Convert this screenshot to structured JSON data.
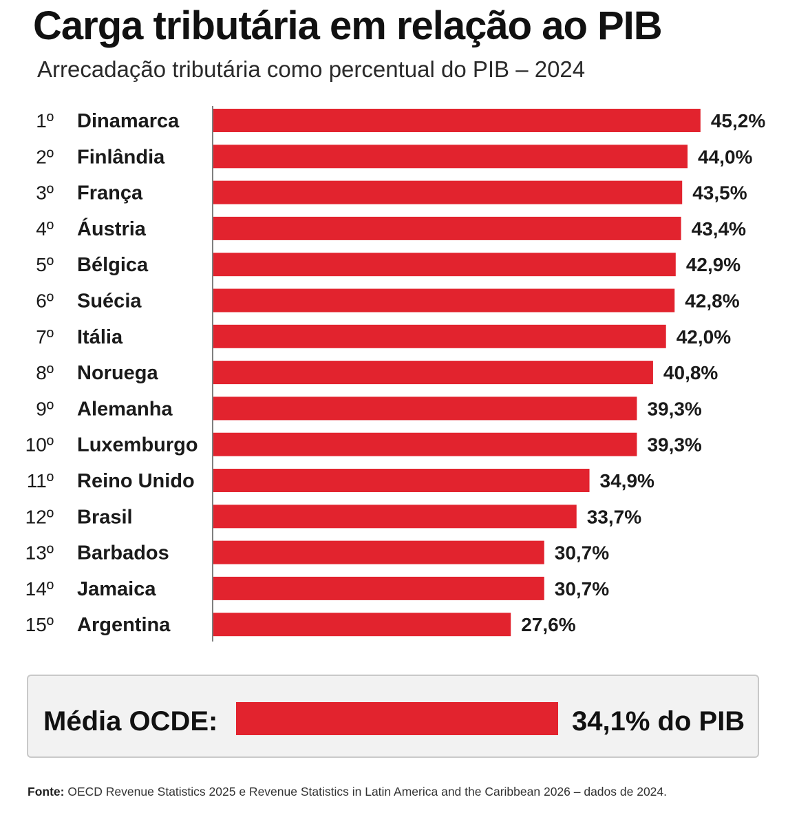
{
  "header": {
    "title": "Carga tributária em relação ao PIB",
    "subtitle": "Arrecadação tributária como percentual do PIB – 2024"
  },
  "chart_data": {
    "type": "bar",
    "orientation": "horizontal",
    "title": "Carga tributária em relação ao PIB",
    "subtitle": "Arrecadação tributária como percentual do PIB – 2024",
    "ranks": [
      "1º",
      "2º",
      "3º",
      "4º",
      "5º",
      "6º",
      "7º",
      "8º",
      "9º",
      "10º",
      "11º",
      "12º",
      "13º",
      "14º",
      "15º"
    ],
    "categories": [
      "Dinamarca",
      "Finlândia",
      "França",
      "Áustria",
      "Bélgica",
      "Suécia",
      "Itália",
      "Noruega",
      "Alemanha",
      "Luxemburgo",
      "Reino Unido",
      "Brasil",
      "Barbados",
      "Jamaica",
      "Argentina"
    ],
    "values": [
      45.2,
      44.0,
      43.5,
      43.4,
      42.9,
      42.8,
      42.0,
      40.8,
      39.3,
      39.3,
      34.9,
      33.7,
      30.7,
      30.7,
      27.6
    ],
    "value_labels": [
      "45,2%",
      "44,0%",
      "43,5%",
      "43,4%",
      "42,9%",
      "42,8%",
      "42,0%",
      "40,8%",
      "39,3%",
      "39,3%",
      "34,9%",
      "33,7%",
      "30,7%",
      "30,7%",
      "27,6%"
    ],
    "unit": "% do PIB",
    "bar_color": "#e2232e",
    "grid": false,
    "legend": "none"
  },
  "average": {
    "label": "Média OCDE:",
    "value": 34.1,
    "value_text": "34,1% do PIB"
  },
  "footer": {
    "source_label": "Fonte:",
    "source_text": " OECD Revenue Statistics 2025 e Revenue Statistics in Latin America and the Caribbean 2026 – dados de 2024."
  }
}
